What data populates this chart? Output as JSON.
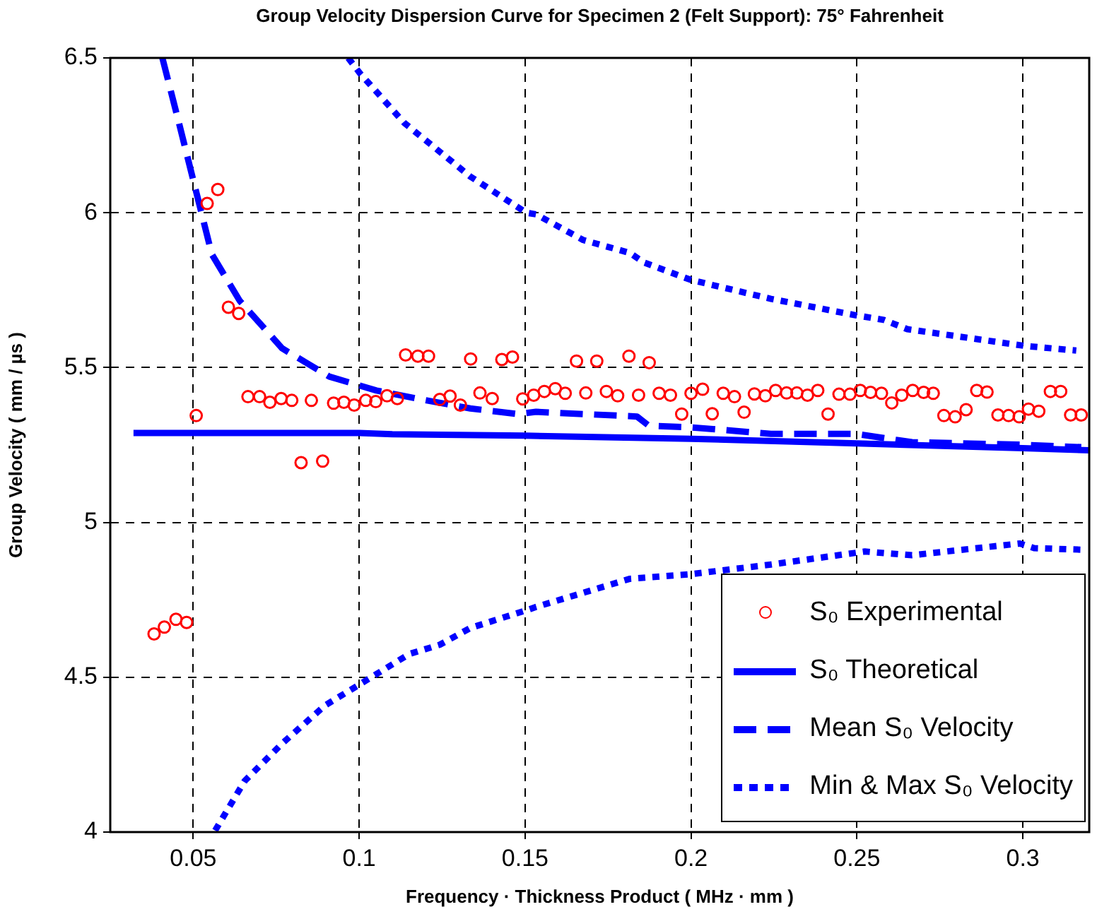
{
  "chart_data": {
    "type": "scatter",
    "title": "Group Velocity Dispersion Curve for Specimen 2 (Felt Support): 75° Fahrenheit",
    "xlabel": "Frequency · Thickness Product ( MHz · mm )",
    "ylabel": "Group Velocity ( mm / µs )",
    "xlim": [
      0.025,
      0.32
    ],
    "xticks": [
      0.05,
      0.1,
      0.15,
      0.2,
      0.25,
      0.3
    ],
    "ylim": [
      4,
      6.5
    ],
    "yticks": [
      4,
      4.5,
      5,
      5.5,
      6,
      6.5
    ],
    "grid": true,
    "legend": "bottom right",
    "series": [
      {
        "name": "S₀ Experimental",
        "type": "scatter",
        "marker": "circle",
        "color": "#ff0000",
        "x": [
          0.0382,
          0.0413,
          0.0448,
          0.048,
          0.0509,
          0.0542,
          0.0574,
          0.0606,
          0.0637,
          0.0665,
          0.07,
          0.0731,
          0.0765,
          0.0797,
          0.0825,
          0.0856,
          0.089,
          0.0923,
          0.0954,
          0.0985,
          0.102,
          0.105,
          0.1084,
          0.1115,
          0.114,
          0.1177,
          0.1209,
          0.1243,
          0.1274,
          0.1305,
          0.1336,
          0.1364,
          0.1401,
          0.143,
          0.1462,
          0.1493,
          0.1526,
          0.1558,
          0.1591,
          0.1621,
          0.1655,
          0.1683,
          0.1716,
          0.1745,
          0.1779,
          0.1813,
          0.1842,
          0.1874,
          0.1904,
          0.1938,
          0.1972,
          0.2,
          0.2035,
          0.2064,
          0.2097,
          0.2131,
          0.216,
          0.2191,
          0.2224,
          0.2255,
          0.2288,
          0.2319,
          0.2351,
          0.2382,
          0.2413,
          0.2446,
          0.2479,
          0.251,
          0.2541,
          0.2574,
          0.2605,
          0.2635,
          0.2668,
          0.2701,
          0.273,
          0.2762,
          0.2796,
          0.2829,
          0.2861,
          0.2892,
          0.2925,
          0.2957,
          0.2989,
          0.3017,
          0.3048,
          0.3083,
          0.3114,
          0.3144,
          0.3176
        ],
        "values": [
          4.64,
          4.662,
          4.687,
          4.677,
          5.345,
          6.03,
          6.075,
          5.695,
          5.675,
          5.406,
          5.406,
          5.388,
          5.4,
          5.394,
          5.193,
          5.394,
          5.198,
          5.385,
          5.388,
          5.379,
          5.394,
          5.39,
          5.409,
          5.4,
          5.541,
          5.537,
          5.537,
          5.397,
          5.408,
          5.379,
          5.528,
          5.418,
          5.4,
          5.526,
          5.534,
          5.399,
          5.411,
          5.423,
          5.432,
          5.417,
          5.521,
          5.418,
          5.521,
          5.423,
          5.409,
          5.537,
          5.411,
          5.516,
          5.417,
          5.411,
          5.35,
          5.417,
          5.43,
          5.351,
          5.417,
          5.406,
          5.356,
          5.415,
          5.409,
          5.426,
          5.418,
          5.418,
          5.411,
          5.426,
          5.35,
          5.414,
          5.414,
          5.426,
          5.42,
          5.417,
          5.386,
          5.411,
          5.426,
          5.42,
          5.417,
          5.345,
          5.341,
          5.364,
          5.426,
          5.421,
          5.347,
          5.345,
          5.341,
          5.366,
          5.359,
          5.423,
          5.423,
          5.347,
          5.347
        ]
      },
      {
        "name": "S₀ Theoretical",
        "type": "line",
        "line_style": "solid",
        "marker": "none",
        "color": "#0000ff",
        "x": [
          0.032,
          0.1,
          0.11,
          0.15,
          0.2,
          0.25,
          0.3,
          0.32
        ],
        "values": [
          5.289,
          5.289,
          5.285,
          5.28,
          5.27,
          5.255,
          5.24,
          5.233
        ]
      },
      {
        "name": "Mean S₀ Velocity",
        "type": "line",
        "line_style": "dashed",
        "marker": "none",
        "color": "#0000ff",
        "x": [
          0.0407,
          0.0457,
          0.0499,
          0.0556,
          0.064,
          0.0768,
          0.091,
          0.1052,
          0.1193,
          0.1335,
          0.1476,
          0.1533,
          0.1837,
          0.1873,
          0.2,
          0.2241,
          0.2496,
          0.2666,
          0.2991,
          0.3176
        ],
        "values": [
          6.5,
          6.29,
          6.11,
          5.866,
          5.716,
          5.562,
          5.471,
          5.426,
          5.396,
          5.368,
          5.35,
          5.357,
          5.342,
          5.312,
          5.307,
          5.286,
          5.286,
          5.259,
          5.251,
          5.243
        ]
      },
      {
        "name": "Min & Max S₀ Velocity",
        "type": "line",
        "line_style": "dotted",
        "marker": "none",
        "color": "#0000ff",
        "x": [
          0.0967,
          0.1002,
          0.1136,
          0.1335,
          0.1504,
          0.1533,
          0.1675,
          0.1816,
          0.1859,
          0.2,
          0.2241,
          0.2496,
          0.2581,
          0.2652,
          0.3006,
          0.3161
        ],
        "values": [
          6.5,
          6.451,
          6.29,
          6.117,
          6.0,
          5.995,
          5.912,
          5.87,
          5.839,
          5.783,
          5.722,
          5.669,
          5.654,
          5.624,
          5.57,
          5.555
        ]
      },
      {
        "type": "line",
        "line_style": "dotted",
        "marker": "none",
        "color": "#0000ff",
        "x": [
          0.0566,
          0.0655,
          0.0768,
          0.0896,
          0.1023,
          0.1151,
          0.1243,
          0.1335,
          0.1512,
          0.1533,
          0.1816,
          0.2,
          0.2241,
          0.2524,
          0.2666,
          0.2991,
          0.3034,
          0.3176
        ],
        "values": [
          4.005,
          4.165,
          4.286,
          4.408,
          4.491,
          4.575,
          4.605,
          4.659,
          4.719,
          4.727,
          4.818,
          4.833,
          4.864,
          4.906,
          4.894,
          4.932,
          4.917,
          4.912
        ]
      }
    ]
  }
}
